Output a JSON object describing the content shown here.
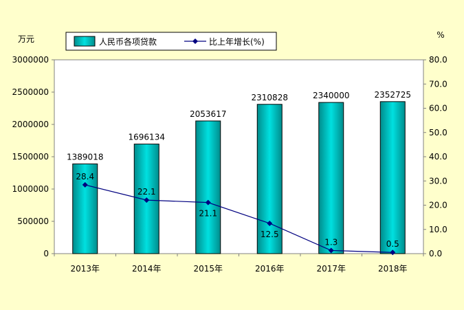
{
  "chart_data": {
    "type": "bar",
    "categories": [
      "2013年",
      "2014年",
      "2015年",
      "2016年",
      "2017年",
      "2018年"
    ],
    "series": [
      {
        "name": "人民币各项贷款",
        "type": "bar",
        "axis": "left",
        "values": [
          1389018,
          1696134,
          2053617,
          2310828,
          2340000,
          2352725
        ],
        "labels": [
          "1389018",
          "1696134",
          "2053617",
          "2310828",
          "2340000",
          "2352725"
        ]
      },
      {
        "name": "比上年增长(%)",
        "type": "line",
        "axis": "right",
        "values": [
          28.4,
          22.1,
          21.1,
          12.5,
          1.3,
          0.5
        ],
        "labels": [
          "28.4",
          "22.1",
          "21.1",
          "12.5",
          "1.3",
          "0.5"
        ]
      }
    ],
    "left_unit": "万元",
    "right_unit": "%",
    "left_ticks": [
      "0",
      "500000",
      "1000000",
      "1500000",
      "2000000",
      "2500000",
      "3000000"
    ],
    "right_ticks": [
      "0.0",
      "10.0",
      "20.0",
      "30.0",
      "40.0",
      "50.0",
      "60.0",
      "70.0",
      "80.0"
    ],
    "ylim_left": [
      0,
      3000000
    ],
    "ylim_right": [
      0,
      80
    ],
    "legend_position": "top",
    "grid": false,
    "colors": {
      "background": "#FFFFCC",
      "plot_background": "#FFFFFF",
      "bar_fill": "#00D2D2",
      "line": "#000080"
    }
  }
}
